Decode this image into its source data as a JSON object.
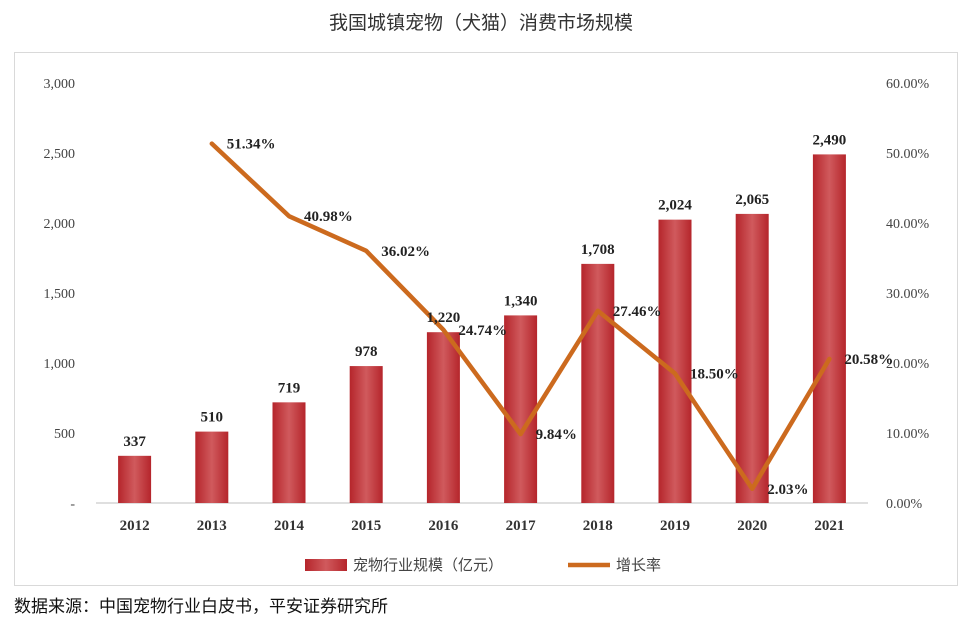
{
  "chart_data": {
    "type": "bar",
    "title": "我国城镇宠物（犬猫）消费市场规模",
    "categories": [
      "2012",
      "2013",
      "2014",
      "2015",
      "2016",
      "2017",
      "2018",
      "2019",
      "2020",
      "2021"
    ],
    "series": [
      {
        "name": "宠物行业规模（亿元）",
        "type": "bar",
        "axis": "left",
        "values": [
          337,
          510,
          719,
          978,
          1220,
          1340,
          1708,
          2024,
          2065,
          2490
        ],
        "labels": [
          "337",
          "510",
          "719",
          "978",
          "1,220",
          "1,340",
          "1,708",
          "2,024",
          "2,065",
          "2,490"
        ]
      },
      {
        "name": "增长率",
        "type": "line",
        "axis": "right",
        "values": [
          null,
          51.34,
          40.98,
          36.02,
          24.74,
          9.84,
          27.46,
          18.5,
          2.03,
          20.58
        ],
        "labels": [
          "",
          "51.34%",
          "40.98%",
          "36.02%",
          "24.74%",
          "9.84%",
          "27.46%",
          "18.50%",
          "2.03%",
          "20.58%"
        ]
      }
    ],
    "ylim_left": [
      0,
      3000
    ],
    "yticks_left": [
      "-",
      "500",
      "1,000",
      "1,500",
      "2,000",
      "2,500",
      "3,000"
    ],
    "ylim_right": [
      0,
      60
    ],
    "yticks_right": [
      "0.00%",
      "10.00%",
      "20.00%",
      "30.00%",
      "40.00%",
      "50.00%",
      "60.00%"
    ],
    "grid": false,
    "legend_position": "bottom",
    "colors": {
      "bar": "#c0393d",
      "bar_light": "#d9676a",
      "line": "#cc6a1e"
    }
  },
  "source_note": "数据来源：中国宠物行业白皮书，平安证券研究所"
}
